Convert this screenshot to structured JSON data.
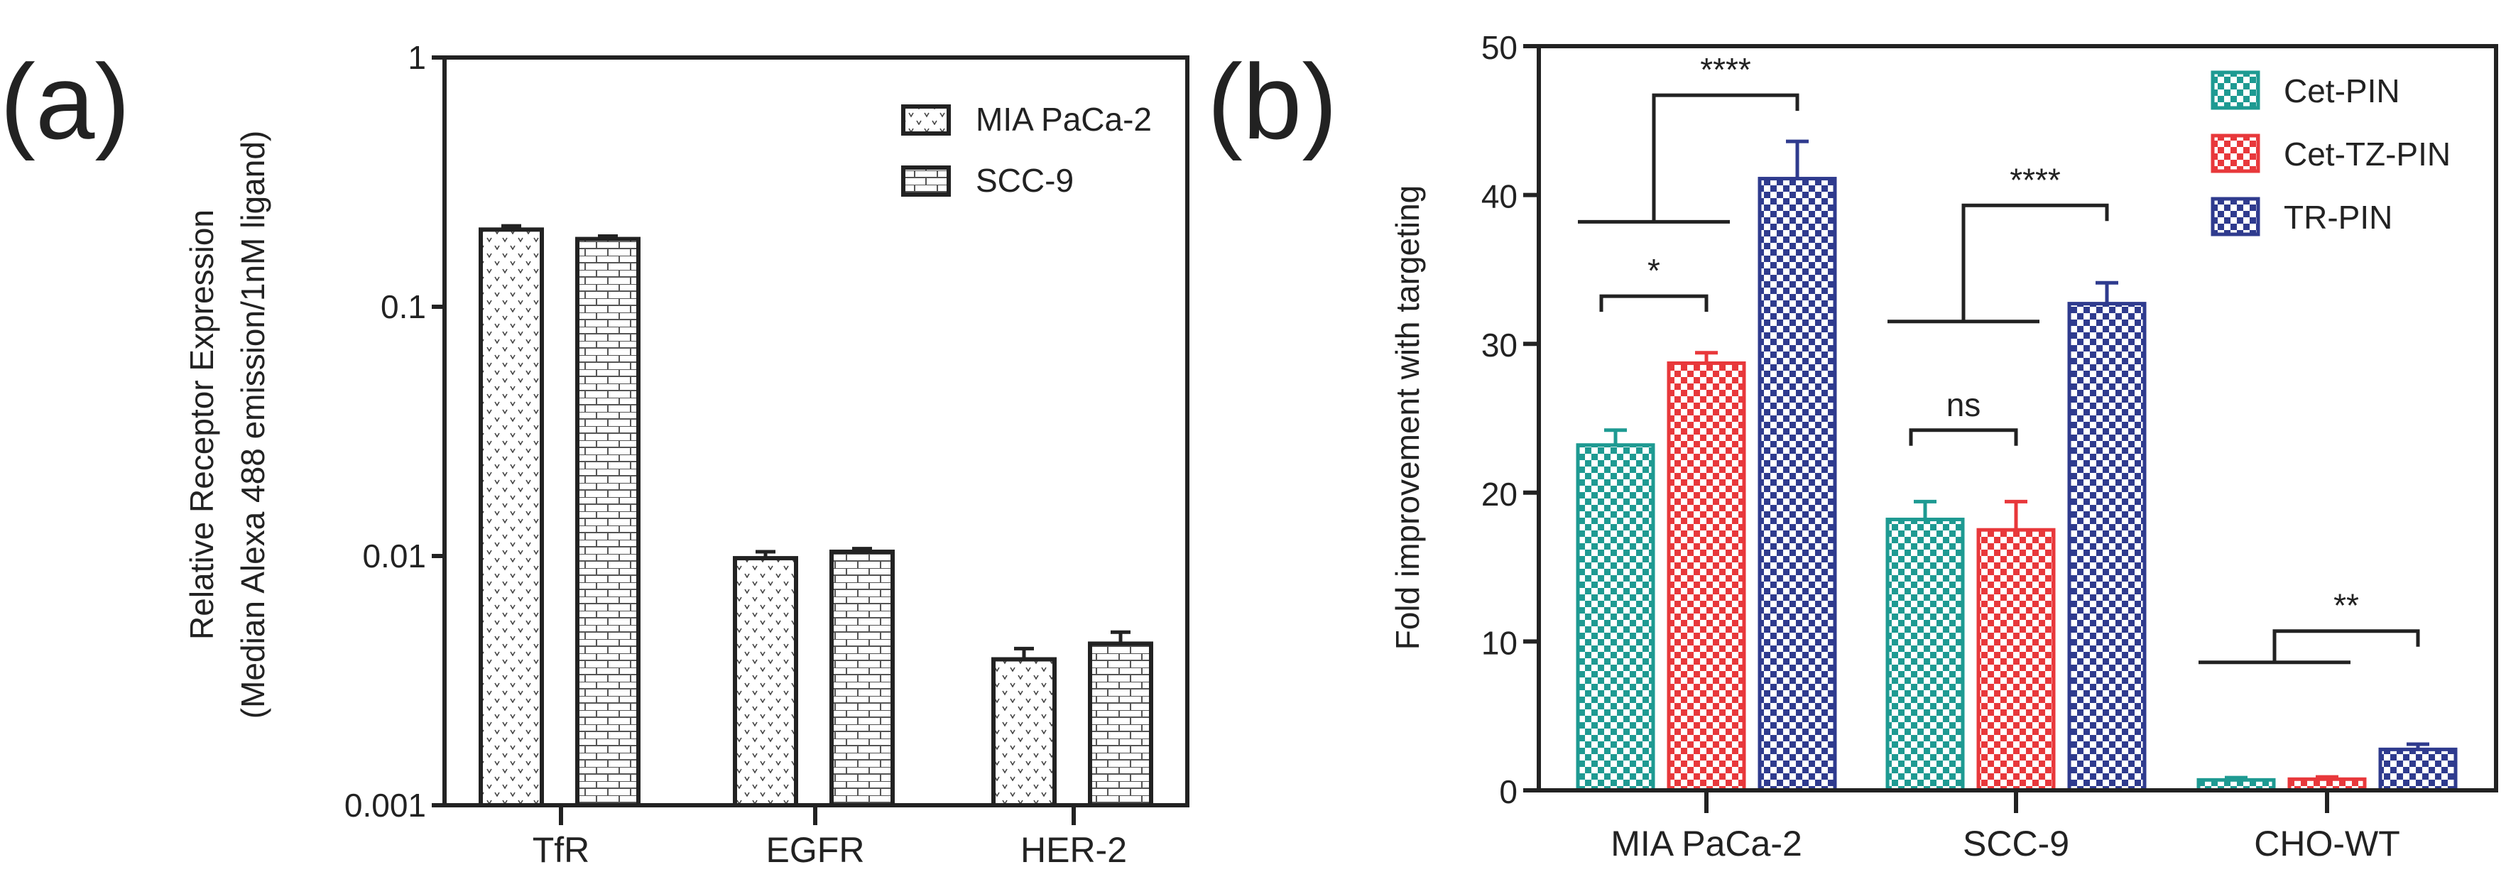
{
  "chart_data": [
    {
      "type": "bar",
      "panel_label": "(a)",
      "title": "",
      "xlabel": "",
      "ylabel_line1": "Relative Receptor Expression",
      "ylabel_line2": "(Median Alexa 488 emission/1nM ligand)",
      "yscale": "log",
      "ylim": [
        0.001,
        1
      ],
      "yticks": [
        "1",
        "0.1",
        "0.01",
        "0.001"
      ],
      "ytick_values": [
        1,
        0.1,
        0.01,
        0.001
      ],
      "categories": [
        "TfR",
        "EGFR",
        "HER-2"
      ],
      "legend_position": "top-right",
      "series": [
        {
          "name": "MIA PaCa-2",
          "pattern": "dots",
          "values": [
            0.204,
            0.0098,
            0.00385
          ],
          "errors": [
            0.007,
            0.0006,
            0.0004
          ]
        },
        {
          "name": "SCC-9",
          "pattern": "brick",
          "values": [
            0.187,
            0.0104,
            0.00445
          ],
          "errors": [
            0.005,
            0.0003,
            0.0005
          ]
        }
      ]
    },
    {
      "type": "bar",
      "panel_label": "(b)",
      "title": "",
      "xlabel": "",
      "ylabel": "Fold improvement  with targeting",
      "ylim": [
        0,
        50
      ],
      "yticks": [
        "0",
        "10",
        "20",
        "30",
        "40",
        "50"
      ],
      "ytick_values": [
        0,
        10,
        20,
        30,
        40,
        50
      ],
      "categories": [
        "MIA PaCa-2",
        "SCC-9",
        "CHO-WT"
      ],
      "legend_position": "top-right",
      "series": [
        {
          "name": "Cet-PIN",
          "color": "#1e9a92",
          "values": [
            23.2,
            18.2,
            0.7
          ],
          "errors": [
            1.0,
            1.2,
            0.15
          ]
        },
        {
          "name": "Cet-TZ-PIN",
          "color": "#e8383b",
          "values": [
            28.7,
            17.5,
            0.75
          ],
          "errors": [
            0.7,
            1.9,
            0.15
          ]
        },
        {
          "name": "TR-PIN",
          "color": "#2f3b8e",
          "values": [
            41.1,
            32.7,
            2.75
          ],
          "errors": [
            2.5,
            1.4,
            0.35
          ]
        }
      ],
      "annotations": [
        {
          "label": "*",
          "category": 0,
          "type": "pair",
          "from": 0,
          "to": 1,
          "y": 33.2
        },
        {
          "label": "****",
          "category": 0,
          "type": "group-vs",
          "from": [
            0,
            1
          ],
          "to": 2,
          "base_y": 38.2,
          "y": 46.7
        },
        {
          "label": "ns",
          "category": 1,
          "type": "pair",
          "from": 0,
          "to": 1,
          "y": 24.2
        },
        {
          "label": "****",
          "category": 1,
          "type": "group-vs",
          "from": [
            0,
            1
          ],
          "to": 2,
          "base_y": 31.5,
          "y": 39.3
        },
        {
          "label": "**",
          "category": 2,
          "type": "group-vs",
          "from": [
            0,
            1
          ],
          "to": 2,
          "base_y": 8.6,
          "y": 10.7
        }
      ]
    }
  ]
}
